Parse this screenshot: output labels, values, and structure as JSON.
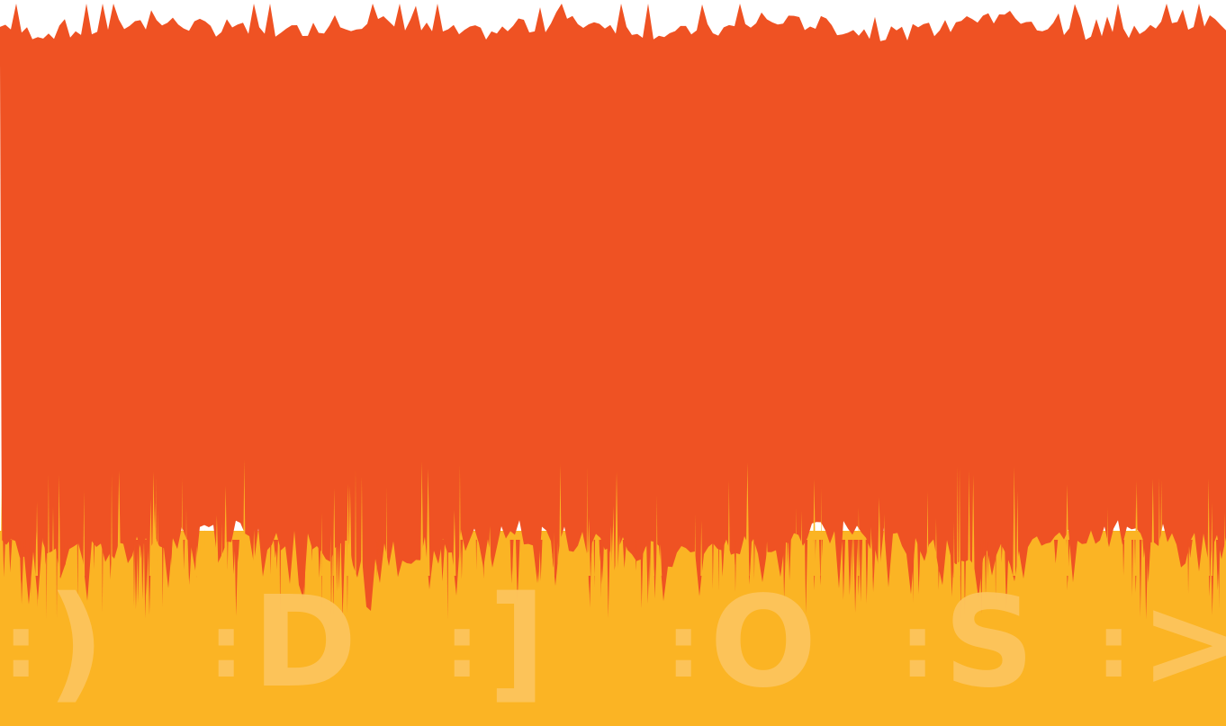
{
  "colors": {
    "background": "#ffffff",
    "orange": "#ef5223",
    "yellow": "#fbb424",
    "emoticon": "#fdc55e"
  },
  "emoticons": [
    {
      "eyes": ":",
      "mouth": ")"
    },
    {
      "eyes": ":",
      "mouth": "D"
    },
    {
      "eyes": ":",
      "mouth": "]"
    },
    {
      "eyes": ":",
      "mouth": "O"
    },
    {
      "eyes": ":",
      "mouth": "S"
    },
    {
      "eyes": ":",
      "mouth": ">"
    }
  ]
}
